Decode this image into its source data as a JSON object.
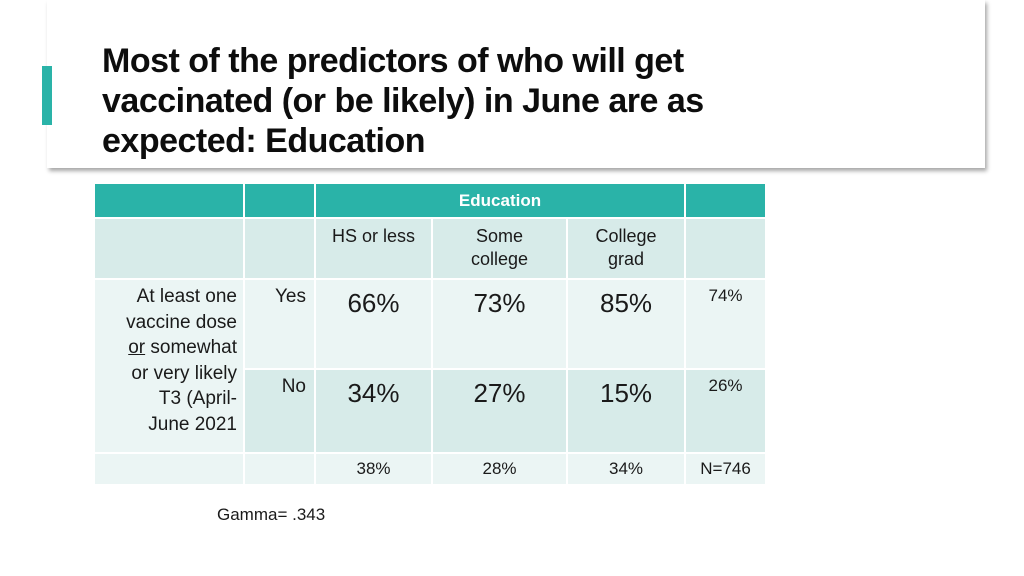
{
  "title": "Most of the predictors of who will get\nvaccinated (or be likely) in June are as\nexpected:  Education",
  "colors": {
    "accent": "#2ab3a8",
    "header_bg": "#2ab3a8",
    "row_dark": "#d7ebe9",
    "row_light": "#ebf5f4"
  },
  "table": {
    "group_header": "Education",
    "columns": [
      "HS or less",
      "Some\ncollege",
      "College\ngrad"
    ],
    "stub": {
      "line1": "At least one",
      "line2": "vaccine dose",
      "line3_underlined": "or",
      "line3_rest": " somewhat",
      "line4": "or very likely",
      "line5": "T3 (April-",
      "line6": "June 2021"
    },
    "rows": [
      {
        "label": "Yes",
        "values": [
          "66%",
          "73%",
          "85%"
        ],
        "total": "74%"
      },
      {
        "label": "No",
        "values": [
          "34%",
          "27%",
          "15%"
        ],
        "total": "26%"
      }
    ],
    "footer": {
      "values": [
        "38%",
        "28%",
        "34%"
      ],
      "total": "N=746"
    }
  },
  "note": "Gamma= .343"
}
